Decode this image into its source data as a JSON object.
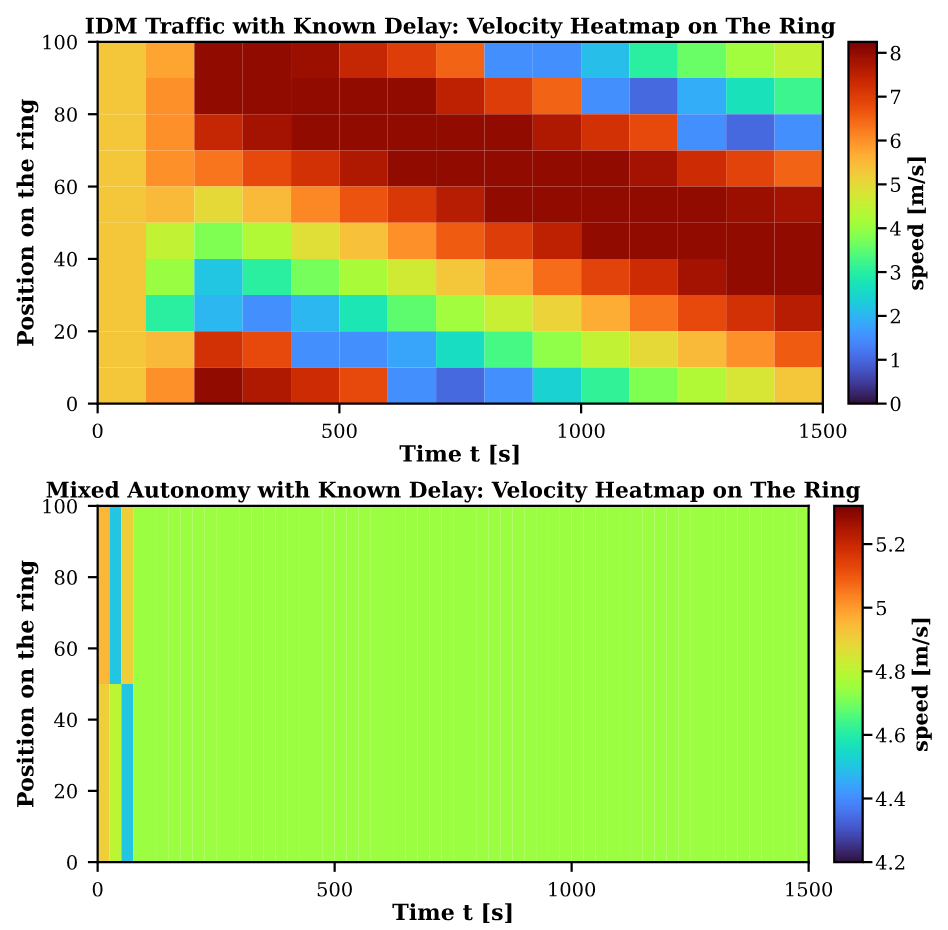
{
  "chart_data": [
    {
      "type": "heatmap",
      "title": "IDM Traffic with Known Delay: Velocity Heatmap on The Ring",
      "xlabel": "Time t [s]",
      "ylabel": "Position on the ring",
      "clabel": "speed [m/s]",
      "cells": [
        [
          5.3,
          5.8,
          8,
          8,
          7.9,
          7.4,
          7,
          6.5,
          1.5,
          1.5,
          2.1,
          3,
          3.6,
          4.1,
          4.5
        ],
        [
          5.3,
          6,
          8,
          8,
          8,
          8,
          8,
          7.5,
          7,
          6.5,
          1.5,
          1,
          1.9,
          2.7,
          3.2
        ],
        [
          5.3,
          6,
          7.4,
          7.8,
          8,
          8,
          8,
          8,
          8,
          7.7,
          7.2,
          6.8,
          1.5,
          1,
          1.5
        ],
        [
          5.3,
          6,
          6.3,
          6.8,
          7.2,
          7.7,
          8,
          8,
          8,
          8,
          8,
          7.8,
          7.3,
          6.9,
          6.5
        ],
        [
          5.3,
          5.5,
          5,
          5.5,
          6.1,
          6.7,
          7.1,
          7.6,
          8,
          8,
          8,
          8,
          8,
          7.9,
          7.8
        ],
        [
          5.3,
          4.5,
          3.8,
          4.3,
          4.9,
          5.4,
          6,
          6.6,
          7,
          7.5,
          8,
          8,
          8,
          8,
          8
        ],
        [
          5.3,
          4,
          2.2,
          3,
          3.7,
          4.2,
          4.7,
          5.3,
          5.8,
          6.4,
          6.9,
          7.3,
          7.8,
          8,
          8
        ],
        [
          5.3,
          3,
          2,
          1.5,
          2,
          2.8,
          3.5,
          4.1,
          4.6,
          5.1,
          5.7,
          6.3,
          6.8,
          7.2,
          7.6
        ],
        [
          5.3,
          5.5,
          7.2,
          6.8,
          1.5,
          1.5,
          1.8,
          2.6,
          3.3,
          3.9,
          4.5,
          5,
          5.5,
          6,
          6.6
        ],
        [
          5.3,
          6,
          8,
          7.7,
          7.3,
          6.8,
          1.5,
          1,
          1.5,
          2.4,
          3.1,
          3.8,
          4.3,
          4.8,
          5.3
        ]
      ],
      "xlim": [
        0,
        1500
      ],
      "ylim": [
        0,
        100
      ],
      "xticks": [
        0,
        500,
        1000,
        1500
      ],
      "yticks": [
        0,
        20,
        40,
        60,
        80,
        100
      ],
      "clim": [
        0,
        8.25
      ],
      "cticks": [
        0,
        1,
        2,
        3,
        4,
        5,
        6,
        7,
        8
      ]
    },
    {
      "type": "heatmap",
      "title": "Mixed Autonomy with Known Delay: Velocity Heatmap on The Ring",
      "xlabel": "Time t [s]",
      "ylabel": "Position on the ring",
      "clabel": "speed [m/s]",
      "cells": [
        [
          4.95,
          4.5,
          4.9,
          4.75,
          4.75,
          4.75,
          4.75,
          4.75,
          4.75,
          4.75,
          4.75,
          4.75,
          4.75,
          4.75,
          4.75,
          4.75,
          4.75,
          4.75,
          4.75,
          4.75,
          4.75,
          4.75,
          4.75,
          4.75,
          4.75,
          4.75,
          4.75,
          4.75,
          4.75,
          4.75,
          4.75,
          4.75,
          4.75,
          4.75,
          4.75,
          4.75,
          4.75,
          4.75,
          4.75,
          4.75,
          4.75,
          4.75,
          4.75,
          4.75,
          4.75,
          4.75,
          4.75,
          4.75,
          4.75,
          4.75,
          4.75,
          4.75,
          4.75,
          4.75,
          4.75,
          4.75,
          4.75,
          4.75,
          4.75,
          4.75
        ],
        [
          4.9,
          4.8,
          4.5,
          4.75,
          4.75,
          4.75,
          4.75,
          4.75,
          4.75,
          4.75,
          4.75,
          4.75,
          4.75,
          4.75,
          4.75,
          4.75,
          4.75,
          4.75,
          4.75,
          4.75,
          4.75,
          4.75,
          4.75,
          4.75,
          4.75,
          4.75,
          4.75,
          4.75,
          4.75,
          4.75,
          4.75,
          4.75,
          4.75,
          4.75,
          4.75,
          4.75,
          4.75,
          4.75,
          4.75,
          4.75,
          4.75,
          4.75,
          4.75,
          4.75,
          4.75,
          4.75,
          4.75,
          4.75,
          4.75,
          4.75,
          4.75,
          4.75,
          4.75,
          4.75,
          4.75,
          4.75,
          4.75,
          4.75,
          4.75,
          4.75
        ]
      ],
      "xlim": [
        0,
        1500
      ],
      "ylim": [
        0,
        100
      ],
      "xticks": [
        0,
        500,
        1000,
        1500
      ],
      "yticks": [
        0,
        20,
        40,
        60,
        80,
        100
      ],
      "clim": [
        4.2,
        5.32
      ],
      "cticks": [
        4.2,
        4.4,
        4.6,
        4.8,
        5,
        5.2
      ]
    }
  ]
}
